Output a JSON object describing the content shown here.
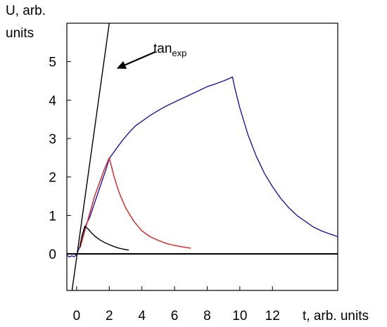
{
  "chart_data": {
    "type": "line",
    "title": "",
    "ylabel_line1": "U, arb.",
    "ylabel_line2": "units",
    "xlabel": "t, arb. units",
    "xlim": [
      -0.6,
      16.0
    ],
    "ylim": [
      -0.95,
      6.0
    ],
    "x_ticks": [
      0,
      2,
      4,
      6,
      8,
      10,
      12
    ],
    "x_tick_labels": [
      "0",
      "2",
      "4",
      "6",
      "8",
      "10",
      "12"
    ],
    "y_ticks": [
      0,
      1,
      2,
      3,
      4,
      5
    ],
    "y_tick_labels": [
      "0",
      "1",
      "2",
      "3",
      "4",
      "5"
    ],
    "zero_line": true,
    "grid": false,
    "annotation": {
      "text_main": "tan",
      "text_sub": "exp",
      "arrow_from": [
        4.8,
        5.25
      ],
      "arrow_to": [
        2.45,
        4.82
      ]
    },
    "series": [
      {
        "color": "#1a1aa6",
        "points": [
          [
            -0.6,
            -0.03
          ],
          [
            -0.45,
            -0.08
          ],
          [
            -0.3,
            -0.05
          ],
          [
            -0.15,
            -0.07
          ],
          [
            0,
            -0.02
          ],
          [
            0.2,
            0.2
          ],
          [
            0.4,
            0.55
          ],
          [
            0.6,
            0.78
          ],
          [
            0.8,
            0.95
          ],
          [
            1.0,
            1.2
          ],
          [
            1.2,
            1.45
          ],
          [
            1.4,
            1.7
          ],
          [
            1.6,
            1.95
          ],
          [
            1.8,
            2.2
          ],
          [
            2.0,
            2.48
          ],
          [
            2.4,
            2.72
          ],
          [
            2.8,
            2.95
          ],
          [
            3.2,
            3.15
          ],
          [
            3.6,
            3.33
          ],
          [
            4.0,
            3.45
          ],
          [
            4.5,
            3.6
          ],
          [
            5.0,
            3.73
          ],
          [
            5.5,
            3.85
          ],
          [
            6.0,
            3.95
          ],
          [
            6.5,
            4.05
          ],
          [
            7.0,
            4.15
          ],
          [
            7.5,
            4.25
          ],
          [
            8.0,
            4.35
          ],
          [
            8.5,
            4.42
          ],
          [
            9.0,
            4.5
          ],
          [
            9.3,
            4.55
          ],
          [
            9.55,
            4.6
          ],
          [
            9.7,
            4.3
          ],
          [
            10.0,
            3.8
          ],
          [
            10.5,
            3.1
          ],
          [
            11.0,
            2.55
          ],
          [
            11.5,
            2.1
          ],
          [
            12.0,
            1.75
          ],
          [
            12.5,
            1.45
          ],
          [
            13.0,
            1.2
          ],
          [
            13.5,
            1.0
          ],
          [
            14.0,
            0.85
          ],
          [
            14.5,
            0.7
          ],
          [
            15.0,
            0.6
          ],
          [
            15.5,
            0.52
          ],
          [
            16.0,
            0.45
          ]
        ]
      },
      {
        "color": "#e02020",
        "points": [
          [
            0.2,
            0.15
          ],
          [
            0.5,
            0.6
          ],
          [
            0.8,
            1.05
          ],
          [
            1.1,
            1.5
          ],
          [
            1.4,
            1.85
          ],
          [
            1.7,
            2.2
          ],
          [
            2.0,
            2.5
          ],
          [
            2.3,
            2.0
          ],
          [
            2.6,
            1.6
          ],
          [
            3.0,
            1.2
          ],
          [
            3.5,
            0.85
          ],
          [
            4.0,
            0.6
          ],
          [
            4.5,
            0.45
          ],
          [
            5.0,
            0.35
          ],
          [
            5.5,
            0.27
          ],
          [
            6.0,
            0.22
          ],
          [
            6.5,
            0.18
          ],
          [
            7.0,
            0.15
          ]
        ]
      },
      {
        "color": "#000000",
        "points": [
          [
            0.2,
            0.2
          ],
          [
            0.35,
            0.5
          ],
          [
            0.5,
            0.72
          ],
          [
            0.7,
            0.65
          ],
          [
            0.9,
            0.55
          ],
          [
            1.1,
            0.47
          ],
          [
            1.4,
            0.37
          ],
          [
            1.7,
            0.3
          ],
          [
            2.0,
            0.24
          ],
          [
            2.3,
            0.19
          ],
          [
            2.6,
            0.15
          ],
          [
            2.9,
            0.12
          ],
          [
            3.2,
            0.1
          ]
        ]
      },
      {
        "color": "#000000",
        "points": [
          [
            -0.28,
            -0.95
          ],
          [
            2.0,
            6.0
          ]
        ]
      }
    ]
  }
}
